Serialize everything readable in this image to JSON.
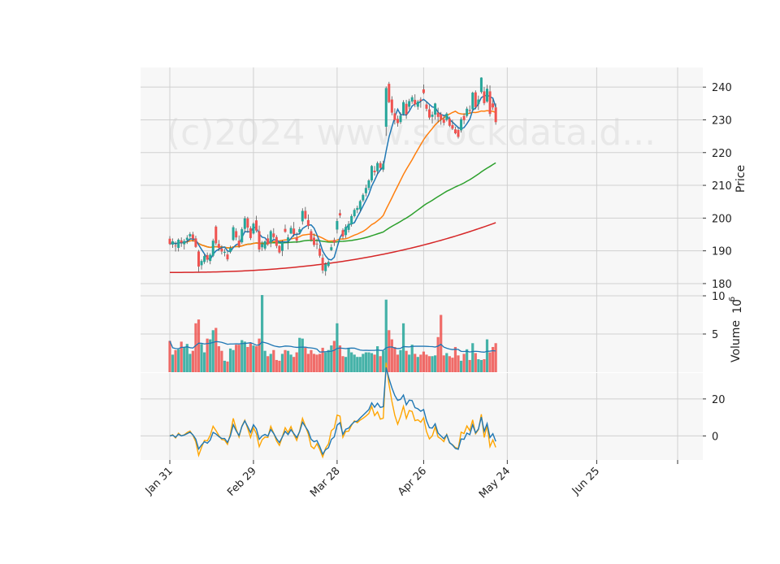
{
  "chart_data": {
    "type": "candlestick",
    "watermark": "(c)2024 www.stockdata.d...",
    "x_ticks": [
      "Jan 31",
      "Feb 29",
      "Mar 28",
      "Apr 26",
      "May 24",
      "Jun 25"
    ],
    "price_panel": {
      "ylabel": "Price",
      "ylim": [
        178,
        246
      ],
      "yticks": [
        180,
        190,
        200,
        210,
        220,
        230,
        240
      ],
      "ma_colors": [
        "#1f77b4",
        "#ff7f0e",
        "#2ca02c",
        "#d62728"
      ]
    },
    "volume_panel": {
      "ylabel": "Volume",
      "exponent_label": "10",
      "exponent_power": "6",
      "ylim": [
        0,
        10
      ],
      "yticks": [
        5,
        10
      ],
      "ma_color": "#1f77b4"
    },
    "oscillator_panel": {
      "ylim": [
        -13,
        34
      ],
      "yticks": [
        0,
        20
      ],
      "line_colors": [
        "#1f77b4",
        "#ffa500"
      ]
    },
    "colors": {
      "up": "#26a69a",
      "down": "#ef5350"
    },
    "candles": [
      {
        "o": 193.7,
        "h": 194.5,
        "l": 191.8,
        "c": 192.1
      },
      {
        "o": 191.9,
        "h": 193.8,
        "l": 190.9,
        "c": 192.9
      },
      {
        "o": 191.6,
        "h": 192.9,
        "l": 189.8,
        "c": 191.4
      },
      {
        "o": 190.9,
        "h": 193.8,
        "l": 189.8,
        "c": 193.4
      },
      {
        "o": 193.2,
        "h": 194.1,
        "l": 191.2,
        "c": 192.5
      },
      {
        "o": 192.0,
        "h": 193.6,
        "l": 190.4,
        "c": 193.0
      },
      {
        "o": 193.3,
        "h": 194.8,
        "l": 192.1,
        "c": 194.0
      },
      {
        "o": 194.4,
        "h": 195.7,
        "l": 193.5,
        "c": 195.1
      },
      {
        "o": 195.0,
        "h": 195.8,
        "l": 192.8,
        "c": 193.7
      },
      {
        "o": 193.8,
        "h": 194.6,
        "l": 190.9,
        "c": 191.2
      },
      {
        "o": 189.8,
        "h": 190.3,
        "l": 183.6,
        "c": 185.2
      },
      {
        "o": 185.6,
        "h": 187.4,
        "l": 184.3,
        "c": 186.9
      },
      {
        "o": 186.6,
        "h": 188.9,
        "l": 186.0,
        "c": 188.4
      },
      {
        "o": 188.7,
        "h": 189.5,
        "l": 186.4,
        "c": 187.3
      },
      {
        "o": 186.9,
        "h": 189.3,
        "l": 185.9,
        "c": 188.8
      },
      {
        "o": 188.5,
        "h": 193.7,
        "l": 188.1,
        "c": 193.1
      },
      {
        "o": 197.4,
        "h": 197.8,
        "l": 191.7,
        "c": 192.3
      },
      {
        "o": 192.1,
        "h": 193.3,
        "l": 189.9,
        "c": 190.9
      },
      {
        "o": 190.7,
        "h": 191.7,
        "l": 188.9,
        "c": 189.8
      },
      {
        "o": 189.4,
        "h": 190.6,
        "l": 188.3,
        "c": 189.7
      },
      {
        "o": 188.9,
        "h": 189.9,
        "l": 186.8,
        "c": 187.4
      },
      {
        "o": 189.7,
        "h": 191.6,
        "l": 189.2,
        "c": 190.9
      },
      {
        "o": 193.3,
        "h": 197.8,
        "l": 193.0,
        "c": 197.2
      },
      {
        "o": 196.0,
        "h": 196.9,
        "l": 193.2,
        "c": 194.1
      },
      {
        "o": 193.1,
        "h": 194.7,
        "l": 190.9,
        "c": 191.5
      },
      {
        "o": 192.6,
        "h": 197.2,
        "l": 192.1,
        "c": 196.6
      },
      {
        "o": 196.7,
        "h": 200.6,
        "l": 195.9,
        "c": 199.9
      },
      {
        "o": 199.9,
        "h": 200.4,
        "l": 195.5,
        "c": 197.1
      },
      {
        "o": 196.9,
        "h": 197.5,
        "l": 193.3,
        "c": 193.9
      },
      {
        "o": 195.3,
        "h": 198.7,
        "l": 195.0,
        "c": 198.3
      },
      {
        "o": 199.3,
        "h": 200.7,
        "l": 195.6,
        "c": 196.2
      },
      {
        "o": 196.0,
        "h": 197.7,
        "l": 189.6,
        "c": 190.4
      },
      {
        "o": 191.1,
        "h": 193.0,
        "l": 190.0,
        "c": 192.1
      },
      {
        "o": 190.7,
        "h": 193.2,
        "l": 190.1,
        "c": 192.9
      },
      {
        "o": 193.8,
        "h": 195.0,
        "l": 191.5,
        "c": 192.0
      },
      {
        "o": 192.5,
        "h": 196.4,
        "l": 191.1,
        "c": 196.0
      },
      {
        "o": 195.3,
        "h": 196.9,
        "l": 193.7,
        "c": 194.2
      },
      {
        "o": 194.2,
        "h": 194.8,
        "l": 190.8,
        "c": 191.5
      },
      {
        "o": 191.5,
        "h": 191.8,
        "l": 189.1,
        "c": 189.5
      },
      {
        "o": 190.0,
        "h": 193.2,
        "l": 188.4,
        "c": 192.6
      },
      {
        "o": 196.7,
        "h": 198.0,
        "l": 195.5,
        "c": 195.8
      },
      {
        "o": 193.0,
        "h": 195.0,
        "l": 190.4,
        "c": 194.1
      },
      {
        "o": 195.3,
        "h": 197.7,
        "l": 195.1,
        "c": 197.0
      },
      {
        "o": 196.8,
        "h": 198.8,
        "l": 194.3,
        "c": 195.1
      },
      {
        "o": 194.1,
        "h": 195.6,
        "l": 192.4,
        "c": 193.1
      },
      {
        "o": 195.6,
        "h": 197.3,
        "l": 195.1,
        "c": 196.6
      },
      {
        "o": 199.0,
        "h": 203.0,
        "l": 198.0,
        "c": 202.2
      },
      {
        "o": 202.2,
        "h": 203.4,
        "l": 199.6,
        "c": 199.9
      },
      {
        "o": 199.4,
        "h": 201.1,
        "l": 196.6,
        "c": 197.6
      },
      {
        "o": 196.0,
        "h": 196.6,
        "l": 192.8,
        "c": 193.3
      },
      {
        "o": 194.0,
        "h": 195.3,
        "l": 191.2,
        "c": 191.8
      },
      {
        "o": 192.2,
        "h": 193.7,
        "l": 190.5,
        "c": 192.1
      },
      {
        "o": 190.7,
        "h": 191.9,
        "l": 187.9,
        "c": 188.5
      },
      {
        "o": 187.9,
        "h": 189.0,
        "l": 183.1,
        "c": 184.0
      },
      {
        "o": 183.8,
        "h": 186.5,
        "l": 182.4,
        "c": 185.9
      },
      {
        "o": 185.4,
        "h": 187.1,
        "l": 184.9,
        "c": 186.6
      },
      {
        "o": 190.2,
        "h": 192.0,
        "l": 189.9,
        "c": 191.1
      },
      {
        "o": 193.3,
        "h": 194.0,
        "l": 191.5,
        "c": 192.5
      },
      {
        "o": 196.5,
        "h": 199.9,
        "l": 195.3,
        "c": 199.1
      },
      {
        "o": 201.5,
        "h": 202.6,
        "l": 200.1,
        "c": 200.8
      },
      {
        "o": 196.3,
        "h": 196.9,
        "l": 193.6,
        "c": 194.4
      },
      {
        "o": 194.8,
        "h": 198.1,
        "l": 193.9,
        "c": 197.3
      },
      {
        "o": 196.4,
        "h": 199.1,
        "l": 195.6,
        "c": 198.2
      },
      {
        "o": 198.1,
        "h": 201.2,
        "l": 197.4,
        "c": 200.6
      },
      {
        "o": 200.6,
        "h": 203.0,
        "l": 200.2,
        "c": 202.5
      },
      {
        "o": 202.5,
        "h": 203.8,
        "l": 201.5,
        "c": 203.1
      },
      {
        "o": 202.7,
        "h": 205.6,
        "l": 202.1,
        "c": 205.2
      },
      {
        "o": 205.4,
        "h": 207.6,
        "l": 204.9,
        "c": 207.1
      },
      {
        "o": 207.6,
        "h": 210.2,
        "l": 206.6,
        "c": 209.2
      },
      {
        "o": 209.2,
        "h": 211.9,
        "l": 208.5,
        "c": 211.5
      },
      {
        "o": 211.5,
        "h": 216.2,
        "l": 210.9,
        "c": 215.9
      },
      {
        "o": 214.5,
        "h": 215.9,
        "l": 213.0,
        "c": 214.0
      },
      {
        "o": 214.3,
        "h": 217.3,
        "l": 213.4,
        "c": 216.8
      },
      {
        "o": 216.8,
        "h": 217.4,
        "l": 214.6,
        "c": 215.3
      },
      {
        "o": 214.8,
        "h": 217.5,
        "l": 214.1,
        "c": 216.6
      },
      {
        "o": 227.9,
        "h": 240.2,
        "l": 225.1,
        "c": 239.7
      },
      {
        "o": 241.0,
        "h": 241.6,
        "l": 235.1,
        "c": 235.4
      },
      {
        "o": 236.2,
        "h": 237.2,
        "l": 231.4,
        "c": 232.2
      },
      {
        "o": 232.0,
        "h": 233.5,
        "l": 228.6,
        "c": 229.9
      },
      {
        "o": 230.3,
        "h": 231.3,
        "l": 227.9,
        "c": 229.0
      },
      {
        "o": 229.3,
        "h": 232.3,
        "l": 228.7,
        "c": 231.3
      },
      {
        "o": 231.8,
        "h": 236.0,
        "l": 231.3,
        "c": 235.4
      },
      {
        "o": 234.9,
        "h": 236.1,
        "l": 230.3,
        "c": 231.7
      },
      {
        "o": 234.0,
        "h": 236.4,
        "l": 233.2,
        "c": 235.7
      },
      {
        "o": 235.6,
        "h": 237.5,
        "l": 234.9,
        "c": 236.9
      },
      {
        "o": 236.1,
        "h": 237.8,
        "l": 233.9,
        "c": 234.7
      },
      {
        "o": 234.0,
        "h": 236.1,
        "l": 233.1,
        "c": 235.6
      },
      {
        "o": 236.2,
        "h": 236.9,
        "l": 233.7,
        "c": 235.8
      },
      {
        "o": 239.3,
        "h": 240.8,
        "l": 237.8,
        "c": 238.2
      },
      {
        "o": 234.7,
        "h": 235.6,
        "l": 232.6,
        "c": 233.4
      },
      {
        "o": 233.2,
        "h": 234.5,
        "l": 230.1,
        "c": 230.7
      },
      {
        "o": 230.9,
        "h": 232.5,
        "l": 228.9,
        "c": 231.6
      },
      {
        "o": 231.6,
        "h": 235.2,
        "l": 230.1,
        "c": 235.0
      },
      {
        "o": 232.2,
        "h": 233.7,
        "l": 229.2,
        "c": 230.9
      },
      {
        "o": 231.7,
        "h": 232.4,
        "l": 228.5,
        "c": 230.1
      },
      {
        "o": 230.2,
        "h": 231.3,
        "l": 228.3,
        "c": 229.1
      },
      {
        "o": 230.0,
        "h": 232.3,
        "l": 229.5,
        "c": 231.9
      },
      {
        "o": 230.4,
        "h": 231.0,
        "l": 227.8,
        "c": 228.2
      },
      {
        "o": 228.4,
        "h": 230.0,
        "l": 226.9,
        "c": 227.3
      },
      {
        "o": 227.1,
        "h": 227.9,
        "l": 225.6,
        "c": 225.9
      },
      {
        "o": 226.9,
        "h": 227.5,
        "l": 224.3,
        "c": 224.8
      },
      {
        "o": 226.8,
        "h": 230.8,
        "l": 226.1,
        "c": 230.2
      },
      {
        "o": 231.2,
        "h": 232.0,
        "l": 228.7,
        "c": 229.9
      },
      {
        "o": 231.2,
        "h": 234.0,
        "l": 230.7,
        "c": 233.4
      },
      {
        "o": 233.0,
        "h": 234.4,
        "l": 232.0,
        "c": 232.7
      },
      {
        "o": 233.2,
        "h": 238.6,
        "l": 232.9,
        "c": 238.3
      },
      {
        "o": 238.4,
        "h": 239.0,
        "l": 233.2,
        "c": 233.9
      },
      {
        "o": 234.8,
        "h": 237.4,
        "l": 233.0,
        "c": 236.2
      },
      {
        "o": 238.5,
        "h": 243.0,
        "l": 238.0,
        "c": 242.9
      },
      {
        "o": 238.7,
        "h": 240.0,
        "l": 234.5,
        "c": 235.1
      },
      {
        "o": 235.6,
        "h": 240.7,
        "l": 235.2,
        "c": 239.5
      },
      {
        "o": 238.7,
        "h": 240.5,
        "l": 231.0,
        "c": 231.8
      },
      {
        "o": 235.0,
        "h": 236.3,
        "l": 233.0,
        "c": 233.8
      },
      {
        "o": 233.8,
        "h": 235.0,
        "l": 228.5,
        "c": 229.3
      }
    ],
    "volume_millions": [
      4.1,
      2.3,
      2.9,
      3.0,
      4.0,
      3.3,
      3.7,
      2.4,
      2.8,
      6.4,
      6.9,
      3.7,
      2.6,
      4.4,
      4.3,
      5.5,
      5.8,
      3.4,
      2.8,
      1.5,
      1.4,
      3.1,
      2.9,
      3.6,
      3.6,
      4.2,
      4.0,
      3.3,
      3.8,
      3.5,
      3.4,
      4.4,
      10.1,
      2.8,
      2.1,
      2.4,
      2.9,
      1.6,
      1.5,
      2.4,
      2.9,
      2.8,
      2.3,
      2.0,
      2.6,
      4.5,
      4.4,
      3.2,
      2.4,
      2.9,
      2.4,
      2.3,
      2.4,
      3.2,
      2.6,
      2.9,
      3.5,
      4.1,
      6.4,
      3.5,
      2.1,
      2.0,
      3.2,
      2.6,
      2.3,
      2.0,
      2.0,
      2.4,
      2.6,
      2.6,
      2.5,
      2.3,
      3.4,
      2.1,
      2.8,
      9.5,
      5.5,
      4.3,
      3.3,
      2.3,
      2.9,
      6.4,
      2.8,
      2.3,
      3.6,
      2.4,
      2.0,
      2.3,
      2.7,
      2.3,
      2.1,
      2.1,
      2.2,
      4.6,
      7.5,
      2.2,
      2.5,
      2.1,
      1.9,
      3.3,
      2.2,
      1.5,
      2.4,
      3.0,
      1.6,
      3.8,
      2.5,
      1.7,
      1.6,
      1.7,
      4.3,
      2.6,
      3.3,
      3.8
    ]
  }
}
